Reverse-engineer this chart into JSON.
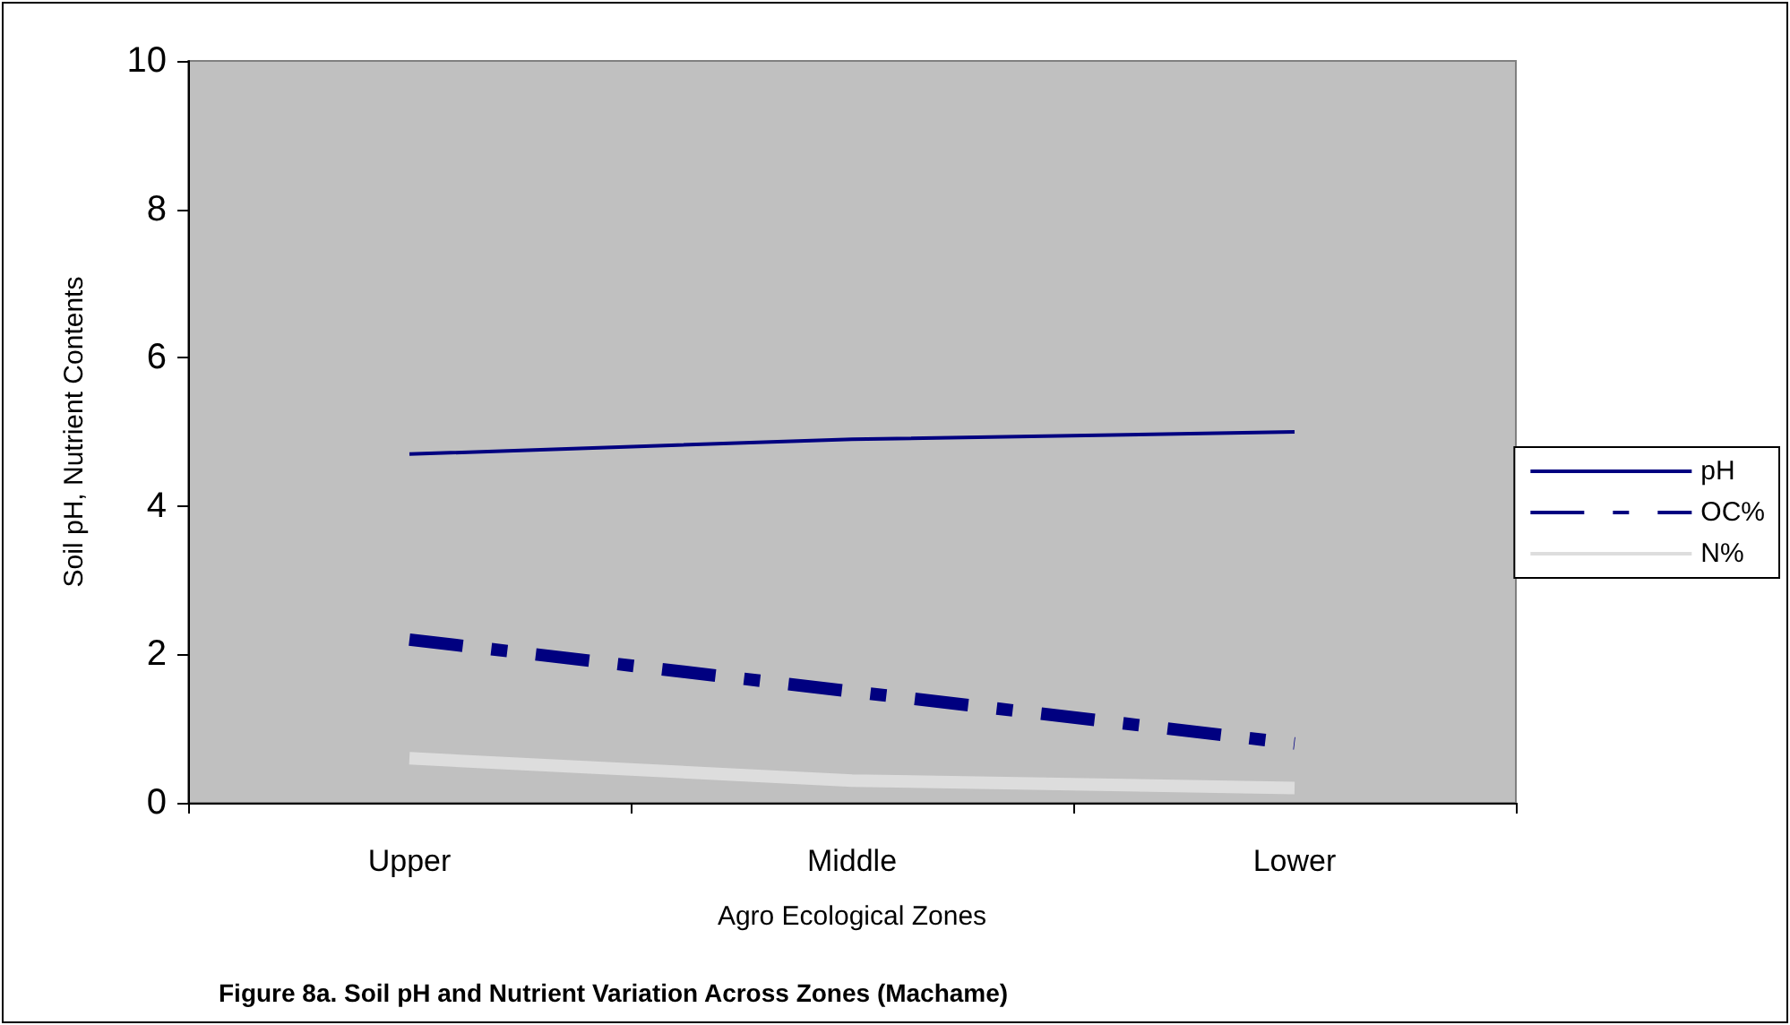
{
  "chart_data": {
    "type": "line",
    "title": "Figure 8a. Soil pH and Nutrient Variation Across Zones (Machame)",
    "xlabel": "Agro Ecological Zones",
    "ylabel": "Soil pH, Nutrient Contents",
    "categories": [
      "Upper",
      "Middle",
      "Lower"
    ],
    "series": [
      {
        "name": "pH",
        "color": "#000080",
        "values": [
          4.7,
          4.9,
          5.0
        ],
        "line_style": "solid"
      },
      {
        "name": "OC%",
        "color": "#000080",
        "values": [
          2.2,
          1.5,
          0.8
        ],
        "line_style": "dashed"
      },
      {
        "name": "N%",
        "color": "#dddddd",
        "values": [
          0.6,
          0.3,
          0.2
        ],
        "line_style": "solid"
      }
    ],
    "ylim": [
      0,
      10
    ],
    "yticks": [
      0,
      2,
      4,
      6,
      8,
      10
    ],
    "grid": false,
    "legend": "right",
    "marker": "none"
  }
}
